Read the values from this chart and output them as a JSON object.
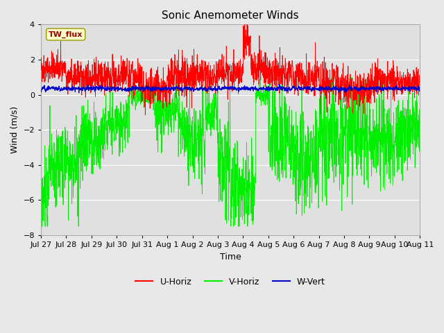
{
  "title": "Sonic Anemometer Winds",
  "xlabel": "Time",
  "ylabel": "Wind (m/s)",
  "ylim": [
    -8,
    4
  ],
  "yticks": [
    -8,
    -6,
    -4,
    -2,
    0,
    2,
    4
  ],
  "x_tick_labels": [
    "Jul 27",
    "Jul 28",
    "Jul 29",
    "Jul 30",
    "Jul 31",
    "Aug 1",
    "Aug 2",
    "Aug 3",
    "Aug 4",
    "Aug 5",
    "Aug 6",
    "Aug 7",
    "Aug 8",
    "Aug 9",
    "Aug 10",
    "Aug 11"
  ],
  "color_u": "#ff0000",
  "color_v": "#00ee00",
  "color_w": "#0000cc",
  "fig_bg": "#e8e8e8",
  "plot_bg": "#e0e0e0",
  "legend_label": "TW_flux",
  "seed": 42,
  "n_points": 2000,
  "title_fontsize": 11,
  "label_fontsize": 9,
  "tick_fontsize": 8
}
